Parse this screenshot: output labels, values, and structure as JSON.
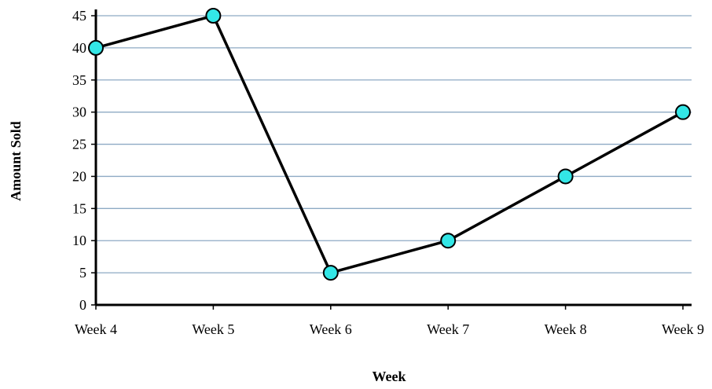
{
  "chart_data": {
    "type": "line",
    "title": "",
    "xlabel": "Week",
    "ylabel": "Amount Sold",
    "categories": [
      "Week 4",
      "Week 5",
      "Week 6",
      "Week 7",
      "Week 8",
      "Week 9"
    ],
    "series": [
      {
        "values": [
          40,
          45,
          5,
          10,
          20,
          30
        ]
      }
    ],
    "ylim": [
      0,
      45
    ],
    "yticks": [
      0,
      5,
      10,
      15,
      20,
      25,
      30,
      35,
      40,
      45
    ],
    "grid": true,
    "legend": "none",
    "colors": {
      "line": "#000000",
      "marker_fill": "#33e6e6",
      "marker_stroke": "#000000",
      "grid": "#8eaac4",
      "axis": "#000000"
    }
  }
}
